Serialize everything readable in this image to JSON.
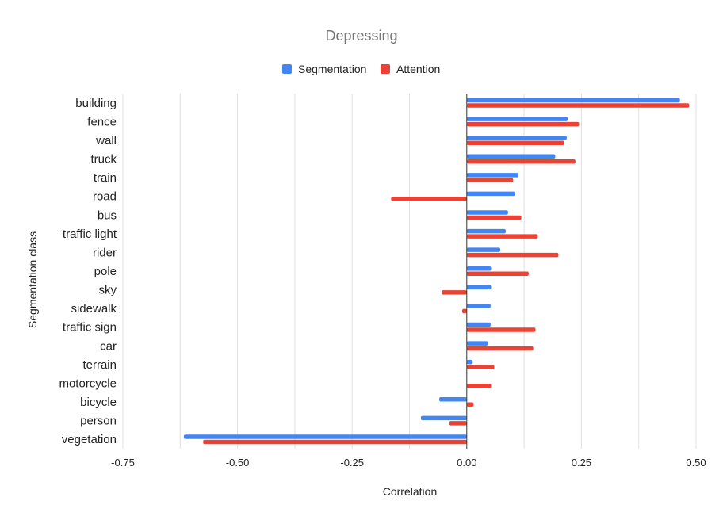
{
  "chart_data": {
    "type": "bar",
    "orientation": "horizontal",
    "title": "Depressing",
    "xlabel": "Correlation",
    "ylabel": "Segmentation class",
    "xlim": [
      -0.75,
      0.5
    ],
    "xticks": [
      "-0.75",
      "-0.50",
      "-0.25",
      "0.00",
      "0.25",
      "0.50"
    ],
    "xtick_values": [
      -0.75,
      -0.5,
      -0.25,
      0,
      0.25,
      0.5
    ],
    "grid": true,
    "legend_position": "top",
    "categories": [
      "building",
      "fence",
      "wall",
      "truck",
      "train",
      "road",
      "bus",
      "traffic light",
      "rider",
      "pole",
      "sky",
      "sidewalk",
      "traffic sign",
      "car",
      "terrain",
      "motorcycle",
      "bicycle",
      "person",
      "vegetation"
    ],
    "series": [
      {
        "name": "Segmentation",
        "color": "#4285f4",
        "values": [
          0.465,
          0.22,
          0.218,
          0.193,
          0.113,
          0.105,
          0.09,
          0.085,
          0.073,
          0.053,
          0.053,
          0.052,
          0.052,
          0.046,
          0.013,
          0.0,
          -0.06,
          -0.1,
          -0.617
        ]
      },
      {
        "name": "Attention",
        "color": "#ea4335",
        "values": [
          0.485,
          0.245,
          0.213,
          0.237,
          0.101,
          -0.165,
          0.119,
          0.155,
          0.2,
          0.135,
          -0.055,
          -0.01,
          0.15,
          0.145,
          0.06,
          0.053,
          0.015,
          -0.038,
          -0.575
        ]
      }
    ]
  }
}
